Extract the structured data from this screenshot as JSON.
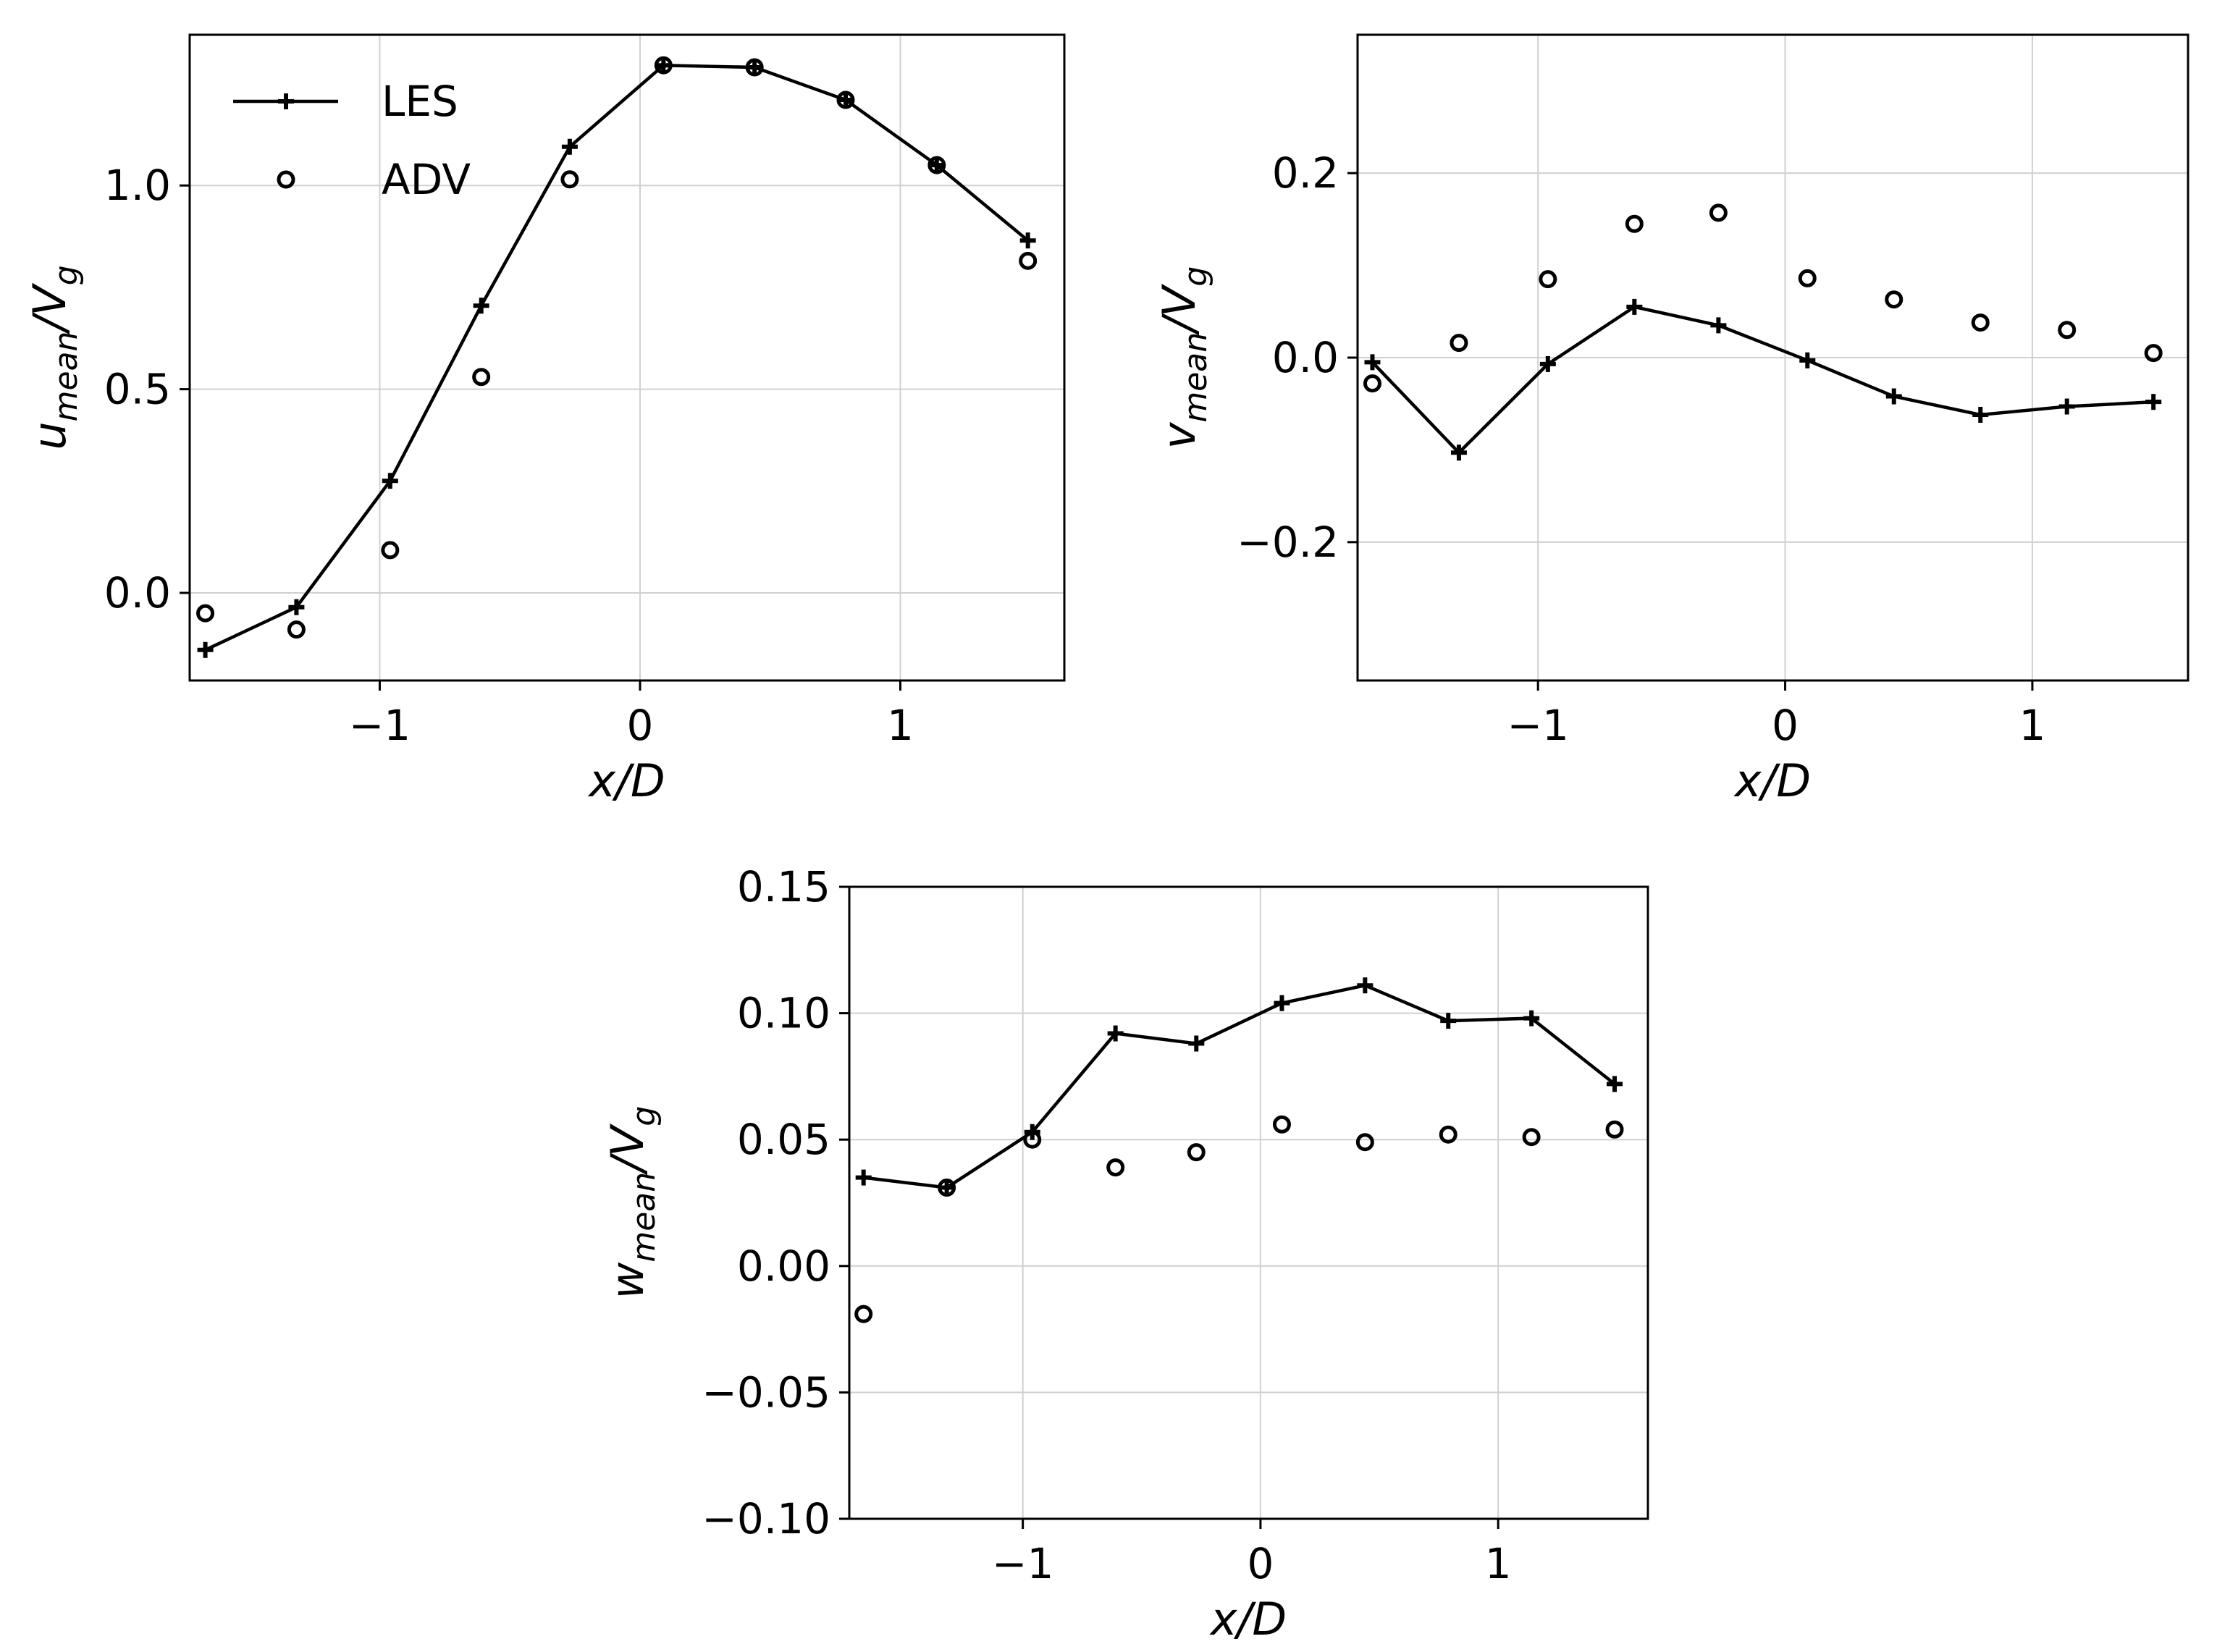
{
  "chart_data": [
    {
      "type": "line",
      "id": "u",
      "ylabel_main": "u",
      "ylabel_sub": "mean",
      "ylabel_tail": "/V",
      "ylabel_tail_sub": "g",
      "xlabel": "x/D",
      "xlim": [
        -1.73,
        1.63
      ],
      "ylim": [
        -0.215,
        1.37
      ],
      "xticks": [
        -1,
        0,
        1
      ],
      "xtick_labels": [
        "−1",
        "0",
        "1"
      ],
      "yticks": [
        0.0,
        0.5,
        1.0
      ],
      "ytick_labels": [
        "0.0",
        "0.5",
        "1.0"
      ],
      "grid": true,
      "legend": {
        "position": "top-left",
        "entries": [
          "LES",
          "ADV"
        ]
      },
      "series": [
        {
          "name": "LES",
          "style": "line-plus",
          "x": [
            -1.67,
            -1.32,
            -0.96,
            -0.61,
            -0.27,
            0.09,
            0.44,
            0.79,
            1.14,
            1.49
          ],
          "y": [
            -0.14,
            -0.035,
            0.275,
            0.705,
            1.095,
            1.295,
            1.29,
            1.21,
            1.05,
            0.865
          ]
        },
        {
          "name": "ADV",
          "style": "circle",
          "x": [
            -1.67,
            -1.32,
            -0.96,
            -0.61,
            -0.27,
            0.09,
            0.44,
            0.79,
            1.14,
            1.49
          ],
          "y": [
            -0.05,
            -0.09,
            0.105,
            0.53,
            1.015,
            1.295,
            1.29,
            1.21,
            1.05,
            0.815
          ]
        }
      ]
    },
    {
      "type": "line",
      "id": "v",
      "ylabel_main": "v",
      "ylabel_sub": "mean",
      "ylabel_tail": "/V",
      "ylabel_tail_sub": "g",
      "xlabel": "x/D",
      "xlim": [
        -1.73,
        1.63
      ],
      "ylim": [
        -0.35,
        0.35
      ],
      "xticks": [
        -1,
        0,
        1
      ],
      "xtick_labels": [
        "−1",
        "0",
        "1"
      ],
      "yticks": [
        -0.2,
        0.0,
        0.2
      ],
      "ytick_labels": [
        "−0.2",
        "0.0",
        "0.2"
      ],
      "grid": true,
      "series": [
        {
          "name": "LES",
          "style": "line-plus",
          "x": [
            -1.67,
            -1.32,
            -0.96,
            -0.61,
            -0.27,
            0.09,
            0.44,
            0.79,
            1.14,
            1.49
          ],
          "y": [
            -0.005,
            -0.103,
            -0.007,
            0.055,
            0.035,
            -0.003,
            -0.042,
            -0.062,
            -0.053,
            -0.048
          ]
        },
        {
          "name": "ADV",
          "style": "circle",
          "x": [
            -1.67,
            -1.32,
            -0.96,
            -0.61,
            -0.27,
            0.09,
            0.44,
            0.79,
            1.14,
            1.49
          ],
          "y": [
            -0.028,
            0.016,
            0.085,
            0.145,
            0.157,
            0.086,
            0.063,
            0.038,
            0.03,
            0.005
          ]
        }
      ]
    },
    {
      "type": "line",
      "id": "w",
      "ylabel_main": "w",
      "ylabel_sub": "mean",
      "ylabel_tail": "/V",
      "ylabel_tail_sub": "g",
      "xlabel": "x/D",
      "xlim": [
        -1.73,
        1.63
      ],
      "ylim": [
        -0.1,
        0.15
      ],
      "xticks": [
        -1,
        0,
        1
      ],
      "xtick_labels": [
        "−1",
        "0",
        "1"
      ],
      "yticks": [
        -0.1,
        -0.05,
        0.0,
        0.05,
        0.1,
        0.15
      ],
      "ytick_labels": [
        "−0.10",
        "−0.05",
        "0.00",
        "0.05",
        "0.10",
        "0.15"
      ],
      "grid": true,
      "series": [
        {
          "name": "LES",
          "style": "line-plus",
          "x": [
            -1.67,
            -1.32,
            -0.96,
            -0.61,
            -0.27,
            0.09,
            0.44,
            0.79,
            1.14,
            1.49
          ],
          "y": [
            0.035,
            0.031,
            0.053,
            0.092,
            0.088,
            0.104,
            0.111,
            0.097,
            0.098,
            0.072
          ]
        },
        {
          "name": "ADV",
          "style": "circle",
          "x": [
            -1.67,
            -1.32,
            -0.96,
            -0.61,
            -0.27,
            0.09,
            0.44,
            0.79,
            1.14,
            1.49
          ],
          "y": [
            -0.019,
            0.031,
            0.05,
            0.039,
            0.045,
            0.056,
            0.049,
            0.052,
            0.051,
            0.054
          ]
        }
      ]
    }
  ]
}
